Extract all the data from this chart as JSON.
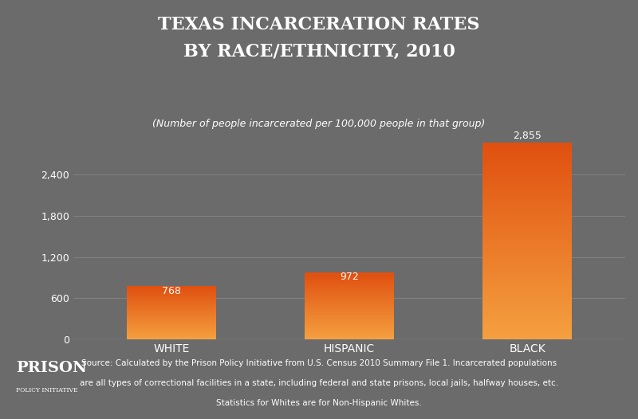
{
  "title_line1": "TEXAS INCARCERATION RATES",
  "title_line2": "BY RACE/ETHNICITY, 2010",
  "subtitle": "(Number of people incarcerated per 100,000 people in that group)",
  "categories": [
    "WHITE",
    "HISPANIC",
    "BLACK"
  ],
  "values": [
    768,
    972,
    2855
  ],
  "bar_color_top": "#e05010",
  "bar_color_bottom": "#f5a040",
  "background_color": "#6b6b6b",
  "text_color": "#ffffff",
  "grid_color": "#888888",
  "ytick_values": [
    0,
    600,
    1200,
    1800,
    2400
  ],
  "ytick_labels": [
    "0",
    "600",
    "1,200",
    "1,800",
    "2,400"
  ],
  "ylim": [
    0,
    3050
  ],
  "source_text_line1": "Source: Calculated by the Prison Policy Initiative from U.S. Census 2010 Summary File 1. Incarcerated populations",
  "source_text_line2": "are all types of correctional facilities in a state, including federal and state prisons, local jails, halfway houses, etc.",
  "source_text_line3": "Statistics for Whites are for Non-Hispanic Whites.",
  "prison_label_big": "PRISON",
  "prison_label_small": "POLICY INITIATIVE",
  "title_fontsize": 16,
  "subtitle_fontsize": 9,
  "tick_label_fontsize": 9,
  "bar_label_fontsize": 9,
  "source_fontsize": 7.5
}
